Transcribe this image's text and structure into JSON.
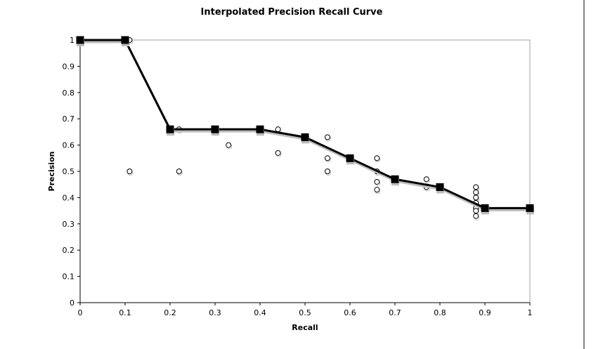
{
  "chart_data": {
    "type": "scatter",
    "title": "Interpolated Precision Recall Curve",
    "xlabel": "Recall",
    "ylabel": "Precision",
    "xlim": [
      0,
      1
    ],
    "ylim": [
      0,
      1
    ],
    "xticks": [
      "0",
      "0.1",
      "0.2",
      "0.3",
      "0.4",
      "0.5",
      "0.6",
      "0.7",
      "0.8",
      "0.9",
      "1"
    ],
    "yticks": [
      "0",
      "0.1",
      "0.2",
      "0.3",
      "0.4",
      "0.5",
      "0.6",
      "0.7",
      "0.8",
      "0.9",
      "1"
    ],
    "grid": false,
    "legend": "none",
    "series": [
      {
        "style": "line-with-square-markers",
        "color": "#000000",
        "points": [
          [
            0,
            1
          ],
          [
            0.1,
            1
          ],
          [
            0.2,
            0.66
          ],
          [
            0.3,
            0.66
          ],
          [
            0.4,
            0.66
          ],
          [
            0.5,
            0.63
          ],
          [
            0.6,
            0.55
          ],
          [
            0.7,
            0.47
          ],
          [
            0.8,
            0.44
          ],
          [
            0.9,
            0.36
          ],
          [
            1,
            0.36
          ]
        ]
      },
      {
        "style": "open-circle-markers",
        "color": "#000000",
        "points": [
          [
            0.11,
            1
          ],
          [
            0.11,
            0.5
          ],
          [
            0.22,
            0.66
          ],
          [
            0.22,
            0.5
          ],
          [
            0.33,
            0.6
          ],
          [
            0.44,
            0.66
          ],
          [
            0.44,
            0.57
          ],
          [
            0.55,
            0.63
          ],
          [
            0.55,
            0.55
          ],
          [
            0.55,
            0.5
          ],
          [
            0.66,
            0.55
          ],
          [
            0.66,
            0.5
          ],
          [
            0.66,
            0.46
          ],
          [
            0.66,
            0.43
          ],
          [
            0.77,
            0.47
          ],
          [
            0.77,
            0.44
          ],
          [
            0.88,
            0.44
          ],
          [
            0.88,
            0.42
          ],
          [
            0.88,
            0.4
          ],
          [
            0.88,
            0.38
          ],
          [
            0.88,
            0.36
          ],
          [
            0.88,
            0.35
          ],
          [
            0.88,
            0.33
          ]
        ]
      }
    ]
  }
}
